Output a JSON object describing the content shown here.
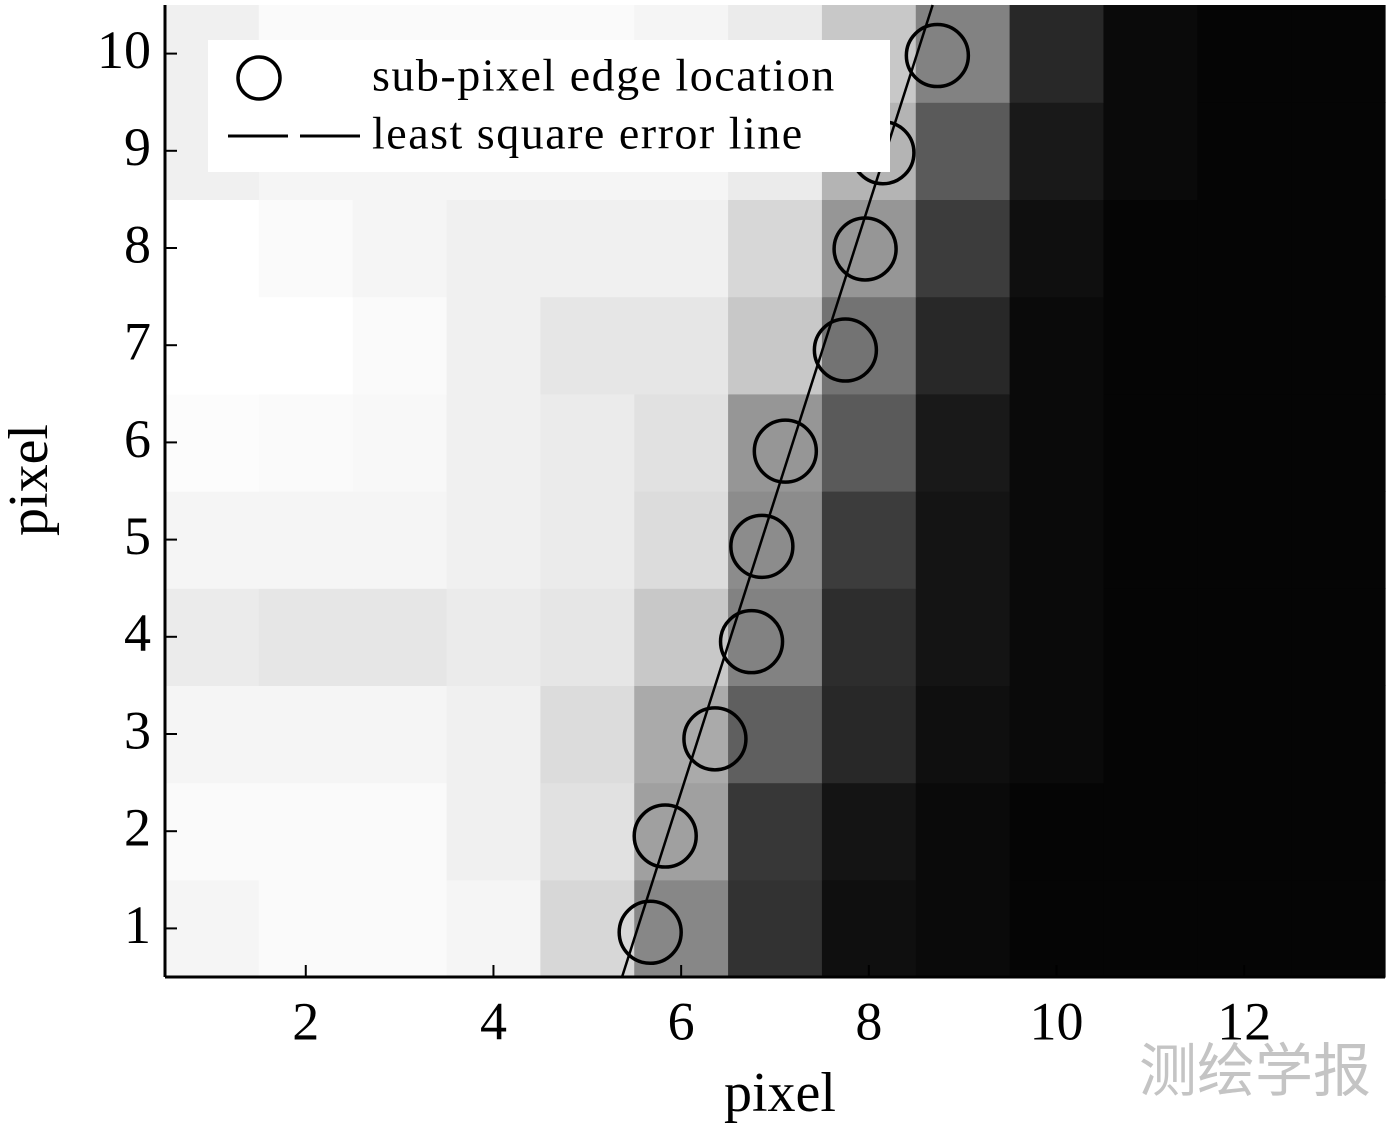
{
  "chart_data": {
    "type": "heatmap",
    "colormap": "gray",
    "xlabel": "pixel",
    "ylabel": "pixel",
    "xlim": [
      0.5,
      13.5
    ],
    "ylim": [
      0.5,
      10.5
    ],
    "xticks": [
      2,
      4,
      6,
      8,
      10,
      12
    ],
    "yticks": [
      1,
      2,
      3,
      4,
      5,
      6,
      7,
      8,
      9,
      10
    ],
    "x": [
      1,
      2,
      3,
      4,
      5,
      6,
      7,
      8,
      9,
      10,
      11,
      12,
      13
    ],
    "y": [
      1,
      2,
      3,
      4,
      5,
      6,
      7,
      8,
      9,
      10
    ],
    "z": [
      [
        245,
        250,
        250,
        245,
        215,
        135,
        50,
        15,
        10,
        5,
        5,
        5,
        5
      ],
      [
        250,
        250,
        250,
        240,
        225,
        160,
        55,
        20,
        10,
        5,
        5,
        5,
        5
      ],
      [
        245,
        245,
        245,
        240,
        220,
        170,
        95,
        40,
        15,
        10,
        5,
        5,
        5
      ],
      [
        235,
        230,
        230,
        235,
        230,
        200,
        130,
        45,
        20,
        10,
        5,
        5,
        5
      ],
      [
        245,
        245,
        245,
        240,
        235,
        220,
        140,
        60,
        20,
        10,
        5,
        5,
        5
      ],
      [
        252,
        250,
        248,
        240,
        235,
        225,
        150,
        90,
        25,
        10,
        5,
        5,
        5
      ],
      [
        255,
        255,
        250,
        240,
        230,
        230,
        200,
        115,
        40,
        10,
        5,
        5,
        5
      ],
      [
        255,
        250,
        245,
        240,
        240,
        240,
        215,
        150,
        60,
        15,
        5,
        5,
        5
      ],
      [
        240,
        245,
        245,
        245,
        245,
        245,
        235,
        180,
        90,
        25,
        10,
        5,
        5
      ],
      [
        240,
        250,
        250,
        250,
        250,
        245,
        235,
        200,
        130,
        40,
        10,
        5,
        5
      ]
    ],
    "series": [
      {
        "name": "sub-pixel edge location",
        "type": "scatter",
        "color": "#000000",
        "x": [
          5.67,
          5.83,
          6.36,
          6.75,
          6.86,
          7.11,
          7.75,
          7.96,
          8.15,
          8.73
        ],
        "y": [
          0.96,
          1.95,
          2.95,
          3.95,
          4.93,
          5.91,
          6.95,
          7.99,
          8.98,
          9.98
        ]
      },
      {
        "name": "least square error line",
        "type": "line",
        "color": "#000000",
        "x": [
          5.37,
          8.68
        ],
        "y": [
          0.5,
          10.5
        ]
      }
    ],
    "legend": "upper left",
    "watermark": "测绘学报"
  }
}
